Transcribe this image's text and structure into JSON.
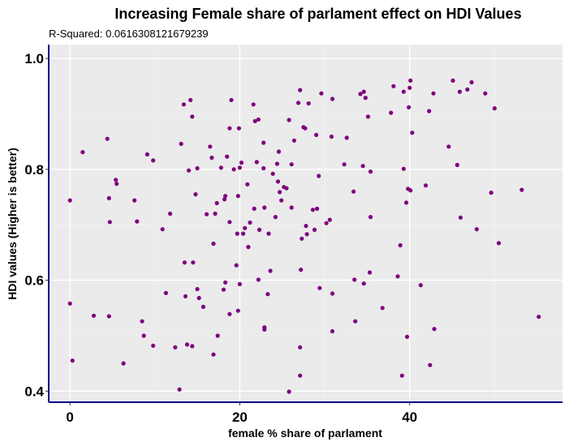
{
  "chart_data": {
    "type": "scatter",
    "title": "Increasing Female share of parlament effect on HDI Values",
    "subtitle": "R-Squared:  0.0616308121679239",
    "xlabel": "female % share of parlament",
    "ylabel": "HDI values (Higher is better)",
    "xlim": [
      -2.5,
      58
    ],
    "ylim": [
      0.38,
      1.025
    ],
    "xticks": [
      0,
      20,
      40
    ],
    "yticks": [
      0.4,
      0.6,
      0.8,
      1.0
    ],
    "xtick_labels": [
      "0",
      "20",
      "40"
    ],
    "ytick_labels": [
      "0.4",
      "0.6",
      "0.8",
      "1.0"
    ],
    "grid": true,
    "point_color": "#800080",
    "panel_color": "#EBEBEB",
    "axis_color": "#00008B",
    "points": [
      [
        0.0,
        0.744
      ],
      [
        0.0,
        0.558
      ],
      [
        0.3,
        0.455
      ],
      [
        1.5,
        0.831
      ],
      [
        2.8,
        0.536
      ],
      [
        4.4,
        0.855
      ],
      [
        4.6,
        0.748
      ],
      [
        4.7,
        0.705
      ],
      [
        4.6,
        0.535
      ],
      [
        5.4,
        0.781
      ],
      [
        5.5,
        0.774
      ],
      [
        6.3,
        0.45
      ],
      [
        7.6,
        0.744
      ],
      [
        7.9,
        0.706
      ],
      [
        8.5,
        0.526
      ],
      [
        8.7,
        0.5
      ],
      [
        9.1,
        0.827
      ],
      [
        9.8,
        0.816
      ],
      [
        9.8,
        0.482
      ],
      [
        10.9,
        0.692
      ],
      [
        11.3,
        0.577
      ],
      [
        11.8,
        0.72
      ],
      [
        12.4,
        0.479
      ],
      [
        12.9,
        0.403
      ],
      [
        13.1,
        0.846
      ],
      [
        13.4,
        0.917
      ],
      [
        13.5,
        0.632
      ],
      [
        13.6,
        0.571
      ],
      [
        13.8,
        0.484
      ],
      [
        14.0,
        0.798
      ],
      [
        14.2,
        0.925
      ],
      [
        14.4,
        0.895
      ],
      [
        14.5,
        0.632
      ],
      [
        14.4,
        0.481
      ],
      [
        14.8,
        0.755
      ],
      [
        15.0,
        0.802
      ],
      [
        15.0,
        0.584
      ],
      [
        15.2,
        0.568
      ],
      [
        15.7,
        0.552
      ],
      [
        16.1,
        0.719
      ],
      [
        16.5,
        0.841
      ],
      [
        16.7,
        0.821
      ],
      [
        16.9,
        0.666
      ],
      [
        16.9,
        0.466
      ],
      [
        17.1,
        0.72
      ],
      [
        17.3,
        0.739
      ],
      [
        17.4,
        0.5
      ],
      [
        17.8,
        0.803
      ],
      [
        18.1,
        0.583
      ],
      [
        18.2,
        0.746
      ],
      [
        18.3,
        0.752
      ],
      [
        18.3,
        0.596
      ],
      [
        18.5,
        0.823
      ],
      [
        18.8,
        0.874
      ],
      [
        18.8,
        0.705
      ],
      [
        18.8,
        0.539
      ],
      [
        19.0,
        0.925
      ],
      [
        19.3,
        0.8
      ],
      [
        19.6,
        0.627
      ],
      [
        19.7,
        0.684
      ],
      [
        19.8,
        0.752
      ],
      [
        19.8,
        0.545
      ],
      [
        19.9,
        0.874
      ],
      [
        20.0,
        0.803
      ],
      [
        20.0,
        0.593
      ],
      [
        20.2,
        0.812
      ],
      [
        20.4,
        0.684
      ],
      [
        20.6,
        0.694
      ],
      [
        20.9,
        0.773
      ],
      [
        21.0,
        0.66
      ],
      [
        21.2,
        0.704
      ],
      [
        21.6,
        0.917
      ],
      [
        21.7,
        0.729
      ],
      [
        21.8,
        0.887
      ],
      [
        22.0,
        0.813
      ],
      [
        22.2,
        0.89
      ],
      [
        22.2,
        0.601
      ],
      [
        22.3,
        0.691
      ],
      [
        22.8,
        0.802
      ],
      [
        22.8,
        0.848
      ],
      [
        22.9,
        0.731
      ],
      [
        22.9,
        0.515
      ],
      [
        22.9,
        0.511
      ],
      [
        23.3,
        0.575
      ],
      [
        23.4,
        0.684
      ],
      [
        23.6,
        0.617
      ],
      [
        23.9,
        0.792
      ],
      [
        24.2,
        0.714
      ],
      [
        24.4,
        0.81
      ],
      [
        24.5,
        0.778
      ],
      [
        24.6,
        0.832
      ],
      [
        24.7,
        0.759
      ],
      [
        24.9,
        0.744
      ],
      [
        25.2,
        0.768
      ],
      [
        25.5,
        0.766
      ],
      [
        25.8,
        0.889
      ],
      [
        25.8,
        0.399
      ],
      [
        26.1,
        0.809
      ],
      [
        26.1,
        0.731
      ],
      [
        26.4,
        0.852
      ],
      [
        26.9,
        0.92
      ],
      [
        27.1,
        0.943
      ],
      [
        27.2,
        0.619
      ],
      [
        27.3,
        0.675
      ],
      [
        27.1,
        0.479
      ],
      [
        27.1,
        0.428
      ],
      [
        27.5,
        0.876
      ],
      [
        27.7,
        0.874
      ],
      [
        27.8,
        0.698
      ],
      [
        27.9,
        0.683
      ],
      [
        28.1,
        0.919
      ],
      [
        28.6,
        0.727
      ],
      [
        28.8,
        0.691
      ],
      [
        29.0,
        0.862
      ],
      [
        29.1,
        0.729
      ],
      [
        29.3,
        0.788
      ],
      [
        29.4,
        0.586
      ],
      [
        29.6,
        0.937
      ],
      [
        30.2,
        0.703
      ],
      [
        30.6,
        0.709
      ],
      [
        30.8,
        0.859
      ],
      [
        30.9,
        0.927
      ],
      [
        30.9,
        0.508
      ],
      [
        30.9,
        0.576
      ],
      [
        32.3,
        0.809
      ],
      [
        32.6,
        0.857
      ],
      [
        33.4,
        0.76
      ],
      [
        33.5,
        0.601
      ],
      [
        33.6,
        0.526
      ],
      [
        34.2,
        0.936
      ],
      [
        34.5,
        0.806
      ],
      [
        34.6,
        0.94
      ],
      [
        34.6,
        0.594
      ],
      [
        34.8,
        0.929
      ],
      [
        35.1,
        0.895
      ],
      [
        35.3,
        0.614
      ],
      [
        35.4,
        0.714
      ],
      [
        35.4,
        0.796
      ],
      [
        36.8,
        0.55
      ],
      [
        37.8,
        0.902
      ],
      [
        38.1,
        0.95
      ],
      [
        38.6,
        0.607
      ],
      [
        38.9,
        0.663
      ],
      [
        39.1,
        0.428
      ],
      [
        39.3,
        0.94
      ],
      [
        39.3,
        0.801
      ],
      [
        39.6,
        0.74
      ],
      [
        39.8,
        0.765
      ],
      [
        39.7,
        0.498
      ],
      [
        39.9,
        0.912
      ],
      [
        40.0,
        0.947
      ],
      [
        40.1,
        0.96
      ],
      [
        40.1,
        0.762
      ],
      [
        40.3,
        0.866
      ],
      [
        41.3,
        0.591
      ],
      [
        41.9,
        0.771
      ],
      [
        42.3,
        0.905
      ],
      [
        42.4,
        0.447
      ],
      [
        42.8,
        0.937
      ],
      [
        42.9,
        0.512
      ],
      [
        44.6,
        0.841
      ],
      [
        45.1,
        0.96
      ],
      [
        45.6,
        0.808
      ],
      [
        45.9,
        0.94
      ],
      [
        46.0,
        0.713
      ],
      [
        46.8,
        0.944
      ],
      [
        47.3,
        0.957
      ],
      [
        47.9,
        0.692
      ],
      [
        48.9,
        0.937
      ],
      [
        49.6,
        0.758
      ],
      [
        50.0,
        0.91
      ],
      [
        50.5,
        0.667
      ],
      [
        53.2,
        0.763
      ],
      [
        55.2,
        0.534
      ]
    ]
  }
}
